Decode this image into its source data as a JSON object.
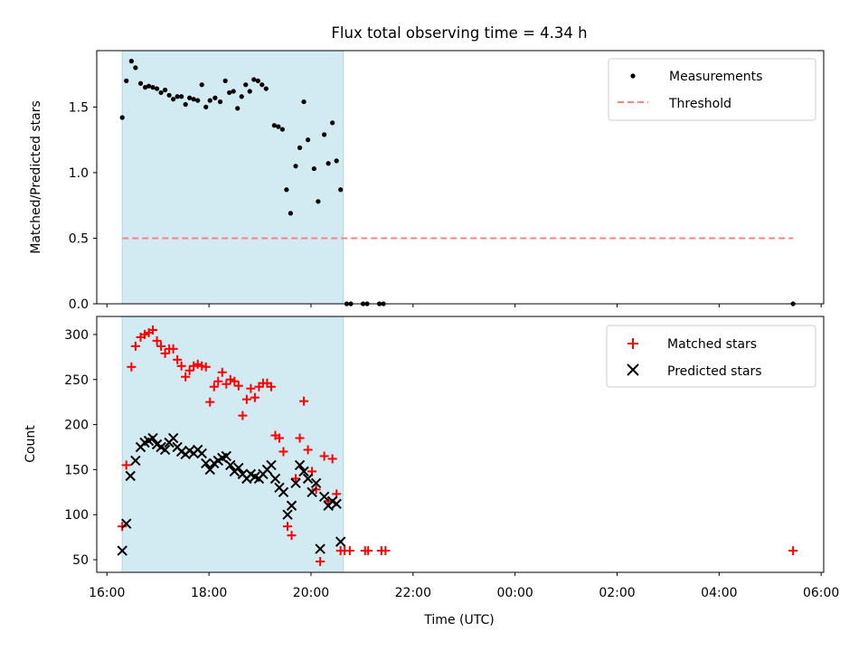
{
  "chart_data": {
    "type": "scatter",
    "title": "Flux total observing time = 4.34 h",
    "xlabel": "Time (UTC)",
    "x_unit": "hours (UTC clock)",
    "xlim": [
      15.8,
      30.05
    ],
    "xticks": [
      {
        "value": 16,
        "label": "16:00"
      },
      {
        "value": 18,
        "label": "18:00"
      },
      {
        "value": 20,
        "label": "20:00"
      },
      {
        "value": 22,
        "label": "22:00"
      },
      {
        "value": 24,
        "label": "00:00"
      },
      {
        "value": 26,
        "label": "02:00"
      },
      {
        "value": 28,
        "label": "04:00"
      },
      {
        "value": 30,
        "label": "06:00"
      }
    ],
    "observing_window": [
      16.3,
      20.63
    ],
    "observing_window_color": "#add8e6",
    "top": {
      "ylabel": "Matched/Predicted stars",
      "ylim": [
        0,
        1.93
      ],
      "yticks": [
        0.0,
        0.5,
        1.0,
        1.5
      ],
      "ytick_labels": [
        "0.0",
        "0.5",
        "1.0",
        "1.5"
      ],
      "legend": [
        "Measurements",
        "Threshold"
      ],
      "legend_placement": "top-right",
      "threshold": {
        "value": 0.5,
        "x_start": 16.3,
        "x_end": 29.45,
        "color": "#ff8080"
      },
      "series": [
        {
          "name": "Measurements",
          "marker": "dot",
          "color": "#000000",
          "points": [
            [
              16.3,
              1.42
            ],
            [
              16.38,
              1.7
            ],
            [
              16.48,
              1.85
            ],
            [
              16.56,
              1.8
            ],
            [
              16.66,
              1.68
            ],
            [
              16.75,
              1.65
            ],
            [
              16.82,
              1.66
            ],
            [
              16.9,
              1.65
            ],
            [
              16.98,
              1.64
            ],
            [
              17.06,
              1.61
            ],
            [
              17.14,
              1.63
            ],
            [
              17.22,
              1.59
            ],
            [
              17.3,
              1.56
            ],
            [
              17.38,
              1.58
            ],
            [
              17.46,
              1.58
            ],
            [
              17.54,
              1.52
            ],
            [
              17.62,
              1.57
            ],
            [
              17.7,
              1.56
            ],
            [
              17.78,
              1.55
            ],
            [
              17.86,
              1.67
            ],
            [
              17.94,
              1.5
            ],
            [
              18.02,
              1.55
            ],
            [
              18.12,
              1.57
            ],
            [
              18.22,
              1.54
            ],
            [
              18.32,
              1.7
            ],
            [
              18.4,
              1.61
            ],
            [
              18.48,
              1.62
            ],
            [
              18.56,
              1.49
            ],
            [
              18.64,
              1.58
            ],
            [
              18.72,
              1.67
            ],
            [
              18.8,
              1.62
            ],
            [
              18.88,
              1.71
            ],
            [
              18.96,
              1.7
            ],
            [
              19.04,
              1.67
            ],
            [
              19.12,
              1.64
            ],
            [
              19.28,
              1.36
            ],
            [
              19.36,
              1.35
            ],
            [
              19.44,
              1.33
            ],
            [
              19.52,
              0.87
            ],
            [
              19.6,
              0.69
            ],
            [
              19.7,
              1.05
            ],
            [
              19.78,
              1.19
            ],
            [
              19.86,
              1.54
            ],
            [
              19.94,
              1.25
            ],
            [
              20.06,
              1.03
            ],
            [
              20.14,
              0.78
            ],
            [
              20.26,
              1.29
            ],
            [
              20.34,
              1.07
            ],
            [
              20.42,
              1.38
            ],
            [
              20.5,
              1.09
            ],
            [
              20.58,
              0.87
            ],
            [
              20.7,
              0.0
            ],
            [
              20.78,
              0.0
            ],
            [
              21.02,
              0.0
            ],
            [
              21.1,
              0.0
            ],
            [
              21.34,
              0.0
            ],
            [
              21.42,
              0.0
            ],
            [
              29.45,
              0.0
            ]
          ]
        }
      ]
    },
    "bottom": {
      "ylabel": "Count",
      "ylim": [
        36,
        320
      ],
      "yticks": [
        50,
        100,
        150,
        200,
        250,
        300
      ],
      "ytick_labels": [
        "50",
        "100",
        "150",
        "200",
        "250",
        "300"
      ],
      "legend": [
        "Matched stars",
        "Predicted stars"
      ],
      "legend_placement": "top-right",
      "series": [
        {
          "name": "Matched stars",
          "marker": "plus",
          "color": "#ff0000",
          "points": [
            [
              16.3,
              87
            ],
            [
              16.38,
              155
            ],
            [
              16.48,
              264
            ],
            [
              16.56,
              287
            ],
            [
              16.66,
              297
            ],
            [
              16.74,
              300
            ],
            [
              16.82,
              302
            ],
            [
              16.9,
              305
            ],
            [
              16.98,
              293
            ],
            [
              17.06,
              287
            ],
            [
              17.14,
              279
            ],
            [
              17.22,
              284
            ],
            [
              17.3,
              284
            ],
            [
              17.38,
              272
            ],
            [
              17.46,
              265
            ],
            [
              17.54,
              253
            ],
            [
              17.62,
              260
            ],
            [
              17.7,
              265
            ],
            [
              17.78,
              267
            ],
            [
              17.86,
              265
            ],
            [
              17.94,
              264
            ],
            [
              18.02,
              225
            ],
            [
              18.1,
              242
            ],
            [
              18.18,
              248
            ],
            [
              18.26,
              258
            ],
            [
              18.34,
              245
            ],
            [
              18.42,
              250
            ],
            [
              18.5,
              248
            ],
            [
              18.58,
              243
            ],
            [
              18.66,
              210
            ],
            [
              18.74,
              228
            ],
            [
              18.82,
              240
            ],
            [
              18.9,
              230
            ],
            [
              18.98,
              242
            ],
            [
              19.06,
              246
            ],
            [
              19.14,
              246
            ],
            [
              19.22,
              242
            ],
            [
              19.3,
              188
            ],
            [
              19.38,
              185
            ],
            [
              19.46,
              170
            ],
            [
              19.54,
              87
            ],
            [
              19.62,
              77
            ],
            [
              19.7,
              140
            ],
            [
              19.78,
              185
            ],
            [
              19.86,
              226
            ],
            [
              19.94,
              172
            ],
            [
              20.02,
              148
            ],
            [
              20.1,
              128
            ],
            [
              20.18,
              48
            ],
            [
              20.26,
              165
            ],
            [
              20.34,
              115
            ],
            [
              20.42,
              162
            ],
            [
              20.5,
              123
            ],
            [
              20.58,
              60
            ],
            [
              20.66,
              60
            ],
            [
              20.76,
              60
            ],
            [
              21.06,
              60
            ],
            [
              21.12,
              60
            ],
            [
              21.38,
              60
            ],
            [
              21.46,
              60
            ],
            [
              29.45,
              60
            ]
          ]
        },
        {
          "name": "Predicted stars",
          "marker": "x",
          "color": "#000000",
          "points": [
            [
              16.3,
              60
            ],
            [
              16.38,
              90
            ],
            [
              16.46,
              143
            ],
            [
              16.56,
              160
            ],
            [
              16.66,
              175
            ],
            [
              16.74,
              180
            ],
            [
              16.82,
              182
            ],
            [
              16.9,
              185
            ],
            [
              16.98,
              178
            ],
            [
              17.06,
              175
            ],
            [
              17.14,
              172
            ],
            [
              17.22,
              180
            ],
            [
              17.3,
              185
            ],
            [
              17.38,
              175
            ],
            [
              17.46,
              170
            ],
            [
              17.54,
              167
            ],
            [
              17.62,
              171
            ],
            [
              17.7,
              168
            ],
            [
              17.78,
              172
            ],
            [
              17.86,
              168
            ],
            [
              17.94,
              157
            ],
            [
              18.02,
              150
            ],
            [
              18.1,
              157
            ],
            [
              18.18,
              160
            ],
            [
              18.26,
              163
            ],
            [
              18.34,
              165
            ],
            [
              18.42,
              155
            ],
            [
              18.5,
              148
            ],
            [
              18.58,
              152
            ],
            [
              18.66,
              145
            ],
            [
              18.74,
              140
            ],
            [
              18.82,
              145
            ],
            [
              18.9,
              142
            ],
            [
              18.98,
              140
            ],
            [
              19.06,
              145
            ],
            [
              19.14,
              150
            ],
            [
              19.22,
              155
            ],
            [
              19.3,
              140
            ],
            [
              19.38,
              130
            ],
            [
              19.46,
              125
            ],
            [
              19.54,
              100
            ],
            [
              19.62,
              110
            ],
            [
              19.7,
              135
            ],
            [
              19.78,
              155
            ],
            [
              19.86,
              148
            ],
            [
              19.94,
              140
            ],
            [
              20.02,
              125
            ],
            [
              20.1,
              135
            ],
            [
              20.18,
              62
            ],
            [
              20.26,
              120
            ],
            [
              20.34,
              110
            ],
            [
              20.42,
              115
            ],
            [
              20.5,
              112
            ],
            [
              20.58,
              70
            ]
          ]
        }
      ]
    }
  }
}
